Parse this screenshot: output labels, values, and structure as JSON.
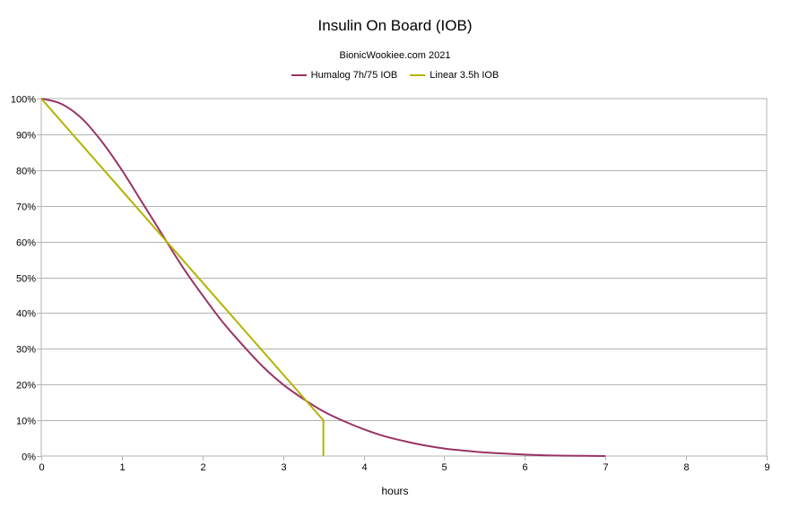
{
  "chart_data": {
    "type": "line",
    "title": "Insulin On Board (IOB)",
    "subtitle": "BionicWookiee.com 2021",
    "xlabel": "hours",
    "ylabel": "",
    "xlim": [
      0,
      9
    ],
    "ylim": [
      0,
      100
    ],
    "x_ticks": [
      "0",
      "1",
      "2",
      "3",
      "4",
      "5",
      "6",
      "7",
      "8",
      "9"
    ],
    "y_ticks": [
      "0%",
      "10%",
      "20%",
      "30%",
      "40%",
      "50%",
      "60%",
      "70%",
      "80%",
      "90%",
      "100%"
    ],
    "grid": true,
    "legend_position": "top",
    "series": [
      {
        "name": "Humalog 7h/75 IOB",
        "color": "#993366",
        "x": [
          0,
          0.25,
          0.5,
          0.75,
          1,
          1.25,
          1.5,
          1.75,
          2,
          2.25,
          2.5,
          2.75,
          3,
          3.25,
          3.5,
          3.75,
          4,
          4.25,
          4.5,
          4.75,
          5,
          5.25,
          5.5,
          5.75,
          6,
          6.25,
          6.5,
          6.75,
          7
        ],
        "values": [
          100,
          98.5,
          94.5,
          88,
          80,
          71,
          62,
          53,
          45,
          37.5,
          31,
          25,
          20,
          16,
          12.5,
          9.8,
          7.5,
          5.6,
          4.2,
          3,
          2.1,
          1.5,
          1,
          0.7,
          0.4,
          0.2,
          0.1,
          0.05,
          0
        ]
      },
      {
        "name": "Linear 3.5h IOB",
        "color": "#b3b300",
        "x": [
          0,
          3.5,
          3.5
        ],
        "values": [
          100,
          10,
          0
        ]
      }
    ]
  }
}
